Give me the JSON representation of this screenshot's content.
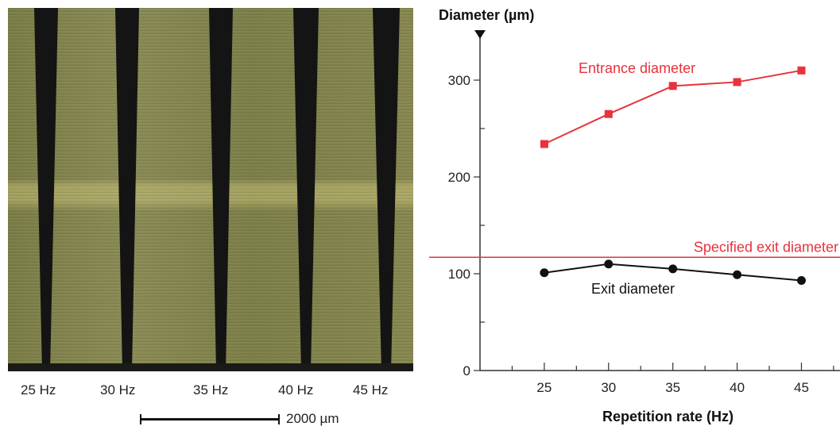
{
  "micrograph": {
    "hole_labels": [
      "25 Hz",
      "30 Hz",
      "35 Hz",
      "40 Hz",
      "45 Hz"
    ],
    "scale_bar_label": "2000 µm",
    "colors": {
      "material": "#7f8049",
      "hole": "#141414"
    }
  },
  "chart_data": {
    "type": "line",
    "ylabel": "Diameter (µm)",
    "xlabel": "Repetition rate (Hz)",
    "x": [
      25,
      30,
      35,
      40,
      45
    ],
    "xlim": [
      20,
      48
    ],
    "ylim": [
      0,
      350
    ],
    "y_ticks": [
      0,
      100,
      200,
      300
    ],
    "x_ticks": [
      25,
      30,
      35,
      40,
      45
    ],
    "grid": false,
    "series": [
      {
        "name": "Entrance diameter",
        "values": [
          234,
          265,
          294,
          298,
          310
        ],
        "color": "#e8323c",
        "marker": "square"
      },
      {
        "name": "Exit diameter",
        "values": [
          101,
          110,
          105,
          99,
          93
        ],
        "color": "#111111",
        "marker": "circle"
      }
    ],
    "reference_lines": [
      {
        "name": "Specified exit diameter",
        "value": 117,
        "color": "#e8323c"
      }
    ]
  }
}
